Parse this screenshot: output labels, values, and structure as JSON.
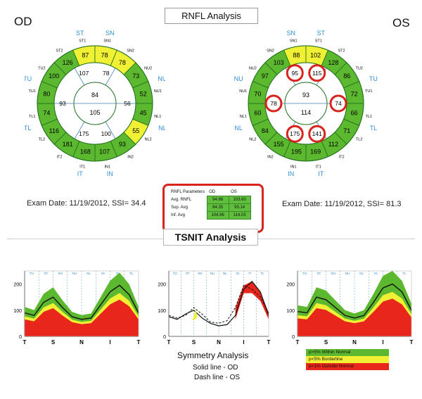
{
  "header": {
    "rnfl_title": "RNFL Analysis",
    "od_label": "OD",
    "os_label": "OS",
    "tsnit_title": "TSNIT Analysis"
  },
  "colors": {
    "normal": "#5cb82e",
    "borderline": "#f0f034",
    "outside": "#e8261c",
    "sector_label": "#2f8fd0",
    "highlight": "#d8241c"
  },
  "od": {
    "exam": "Exam Date: 11/19/2012, SSI= 34.4",
    "outer_sectors": [
      {
        "label": "ST1",
        "value": "87",
        "status": "borderline"
      },
      {
        "label": "SN1",
        "value": "78",
        "status": "borderline"
      },
      {
        "label": "SN2",
        "value": "78",
        "status": "borderline"
      },
      {
        "label": "NU2",
        "value": "73",
        "status": "normal"
      },
      {
        "label": "NU1",
        "value": "52",
        "status": "normal"
      },
      {
        "label": "NL1",
        "value": "45",
        "status": "normal"
      },
      {
        "label": "NL2",
        "value": "55",
        "status": "borderline"
      },
      {
        "label": "IN2",
        "value": "93",
        "status": "normal"
      },
      {
        "label": "IN1",
        "value": "107",
        "status": "normal"
      },
      {
        "label": "IT1",
        "value": "168",
        "status": "normal"
      },
      {
        "label": "IT2",
        "value": "181",
        "status": "normal"
      },
      {
        "label": "TL2",
        "value": "116",
        "status": "normal"
      },
      {
        "label": "TL1",
        "value": "74",
        "status": "normal"
      },
      {
        "label": "TU1",
        "value": "80",
        "status": "normal"
      },
      {
        "label": "TU2",
        "value": "100",
        "status": "normal"
      },
      {
        "label": "ST2",
        "value": "126",
        "status": "normal"
      }
    ],
    "middle_values": [
      "107",
      "78",
      "56",
      "100",
      "175",
      "93"
    ],
    "center_top": "84",
    "center_bottom": "105",
    "quadrant_labels": [
      "ST",
      "SN",
      "NU",
      "NL",
      "IN",
      "IT",
      "TL",
      "TU"
    ]
  },
  "os": {
    "exam": "Exam Date: 11/19/2012, SSI= 81.3",
    "outer_sectors": [
      {
        "label": "SN1",
        "value": "88",
        "status": "borderline"
      },
      {
        "label": "ST1",
        "value": "102",
        "status": "borderline"
      },
      {
        "label": "ST2",
        "value": "128",
        "status": "normal"
      },
      {
        "label": "TU2",
        "value": "86",
        "status": "normal"
      },
      {
        "label": "TU1",
        "value": "72",
        "status": "normal"
      },
      {
        "label": "TL1",
        "value": "66",
        "status": "normal"
      },
      {
        "label": "TL2",
        "value": "71",
        "status": "normal"
      },
      {
        "label": "IT2",
        "value": "112",
        "status": "normal"
      },
      {
        "label": "IT1",
        "value": "169",
        "status": "normal"
      },
      {
        "label": "IN1",
        "value": "195",
        "status": "normal"
      },
      {
        "label": "IN2",
        "value": "155",
        "status": "normal"
      },
      {
        "label": "NL2",
        "value": "84",
        "status": "normal"
      },
      {
        "label": "NL1",
        "value": "60",
        "status": "normal"
      },
      {
        "label": "NU1",
        "value": "70",
        "status": "normal"
      },
      {
        "label": "NU2",
        "value": "97",
        "status": "normal"
      },
      {
        "label": "SN2",
        "value": "103",
        "status": "normal"
      }
    ],
    "middle_values": [
      "95",
      "115",
      "74",
      "141",
      "175",
      "78"
    ],
    "center_top": "93",
    "center_bottom": "114",
    "quadrant_labels": [
      "SN",
      "ST",
      "TU",
      "TL",
      "IT",
      "IN",
      "NL",
      "NU"
    ]
  },
  "rnfl_parameters": {
    "header": [
      "RNFL Parameters",
      "OD",
      "OS"
    ],
    "rows": [
      {
        "name": "Avg. RNFL",
        "od": "94.66",
        "os": "103.60"
      },
      {
        "name": "Sup. Avg",
        "od": "84.35",
        "os": "93.14"
      },
      {
        "name": "Inf. Avg",
        "od": "104.96",
        "os": "114.03"
      }
    ]
  },
  "tsnit": {
    "y_ticks": [
      "200",
      "100",
      "0"
    ],
    "x_ticks": [
      "T",
      "S",
      "N",
      "I",
      "T"
    ],
    "sectors": [
      "TU",
      "ST",
      "SN",
      "NU",
      "NL",
      "IN",
      "IT",
      "TL"
    ],
    "symmetry_title": "Symmetry Analysis",
    "solid_line": "Solid line - OD",
    "dash_line": "Dash line - OS",
    "legend": [
      {
        "label": "p>5% Within Normal",
        "color": "#5cb82e"
      },
      {
        "label": "p<5% Borderline",
        "color": "#f0f034"
      },
      {
        "label": "p<1% Outside Normal",
        "color": "#e8261c"
      }
    ]
  },
  "chart_data": [
    {
      "type": "line",
      "title": "",
      "series": [
        {
          "name": "",
          "values": [
            90,
            80,
            130,
            150,
            110,
            75,
            65,
            70,
            120,
            170,
            195,
            160,
            90
          ]
        }
      ],
      "ylim": [
        0,
        250
      ]
    },
    {
      "type": "line",
      "title": "Symmetry Analysis",
      "series": [
        {
          "name": "Solid line - OD",
          "values": [
            75,
            65,
            85,
            100,
            70,
            50,
            40,
            45,
            80,
            180,
            210,
            170,
            80
          ]
        },
        {
          "name": "Dash line - OS",
          "values": [
            80,
            70,
            80,
            110,
            85,
            55,
            50,
            60,
            110,
            195,
            180,
            150,
            90
          ]
        }
      ],
      "ylim": [
        0,
        250
      ]
    },
    {
      "type": "line",
      "title": "",
      "series": [
        {
          "name": "",
          "values": [
            95,
            90,
            150,
            140,
            110,
            80,
            70,
            80,
            130,
            185,
            200,
            170,
            100
          ]
        }
      ],
      "ylim": [
        0,
        250
      ]
    }
  ]
}
